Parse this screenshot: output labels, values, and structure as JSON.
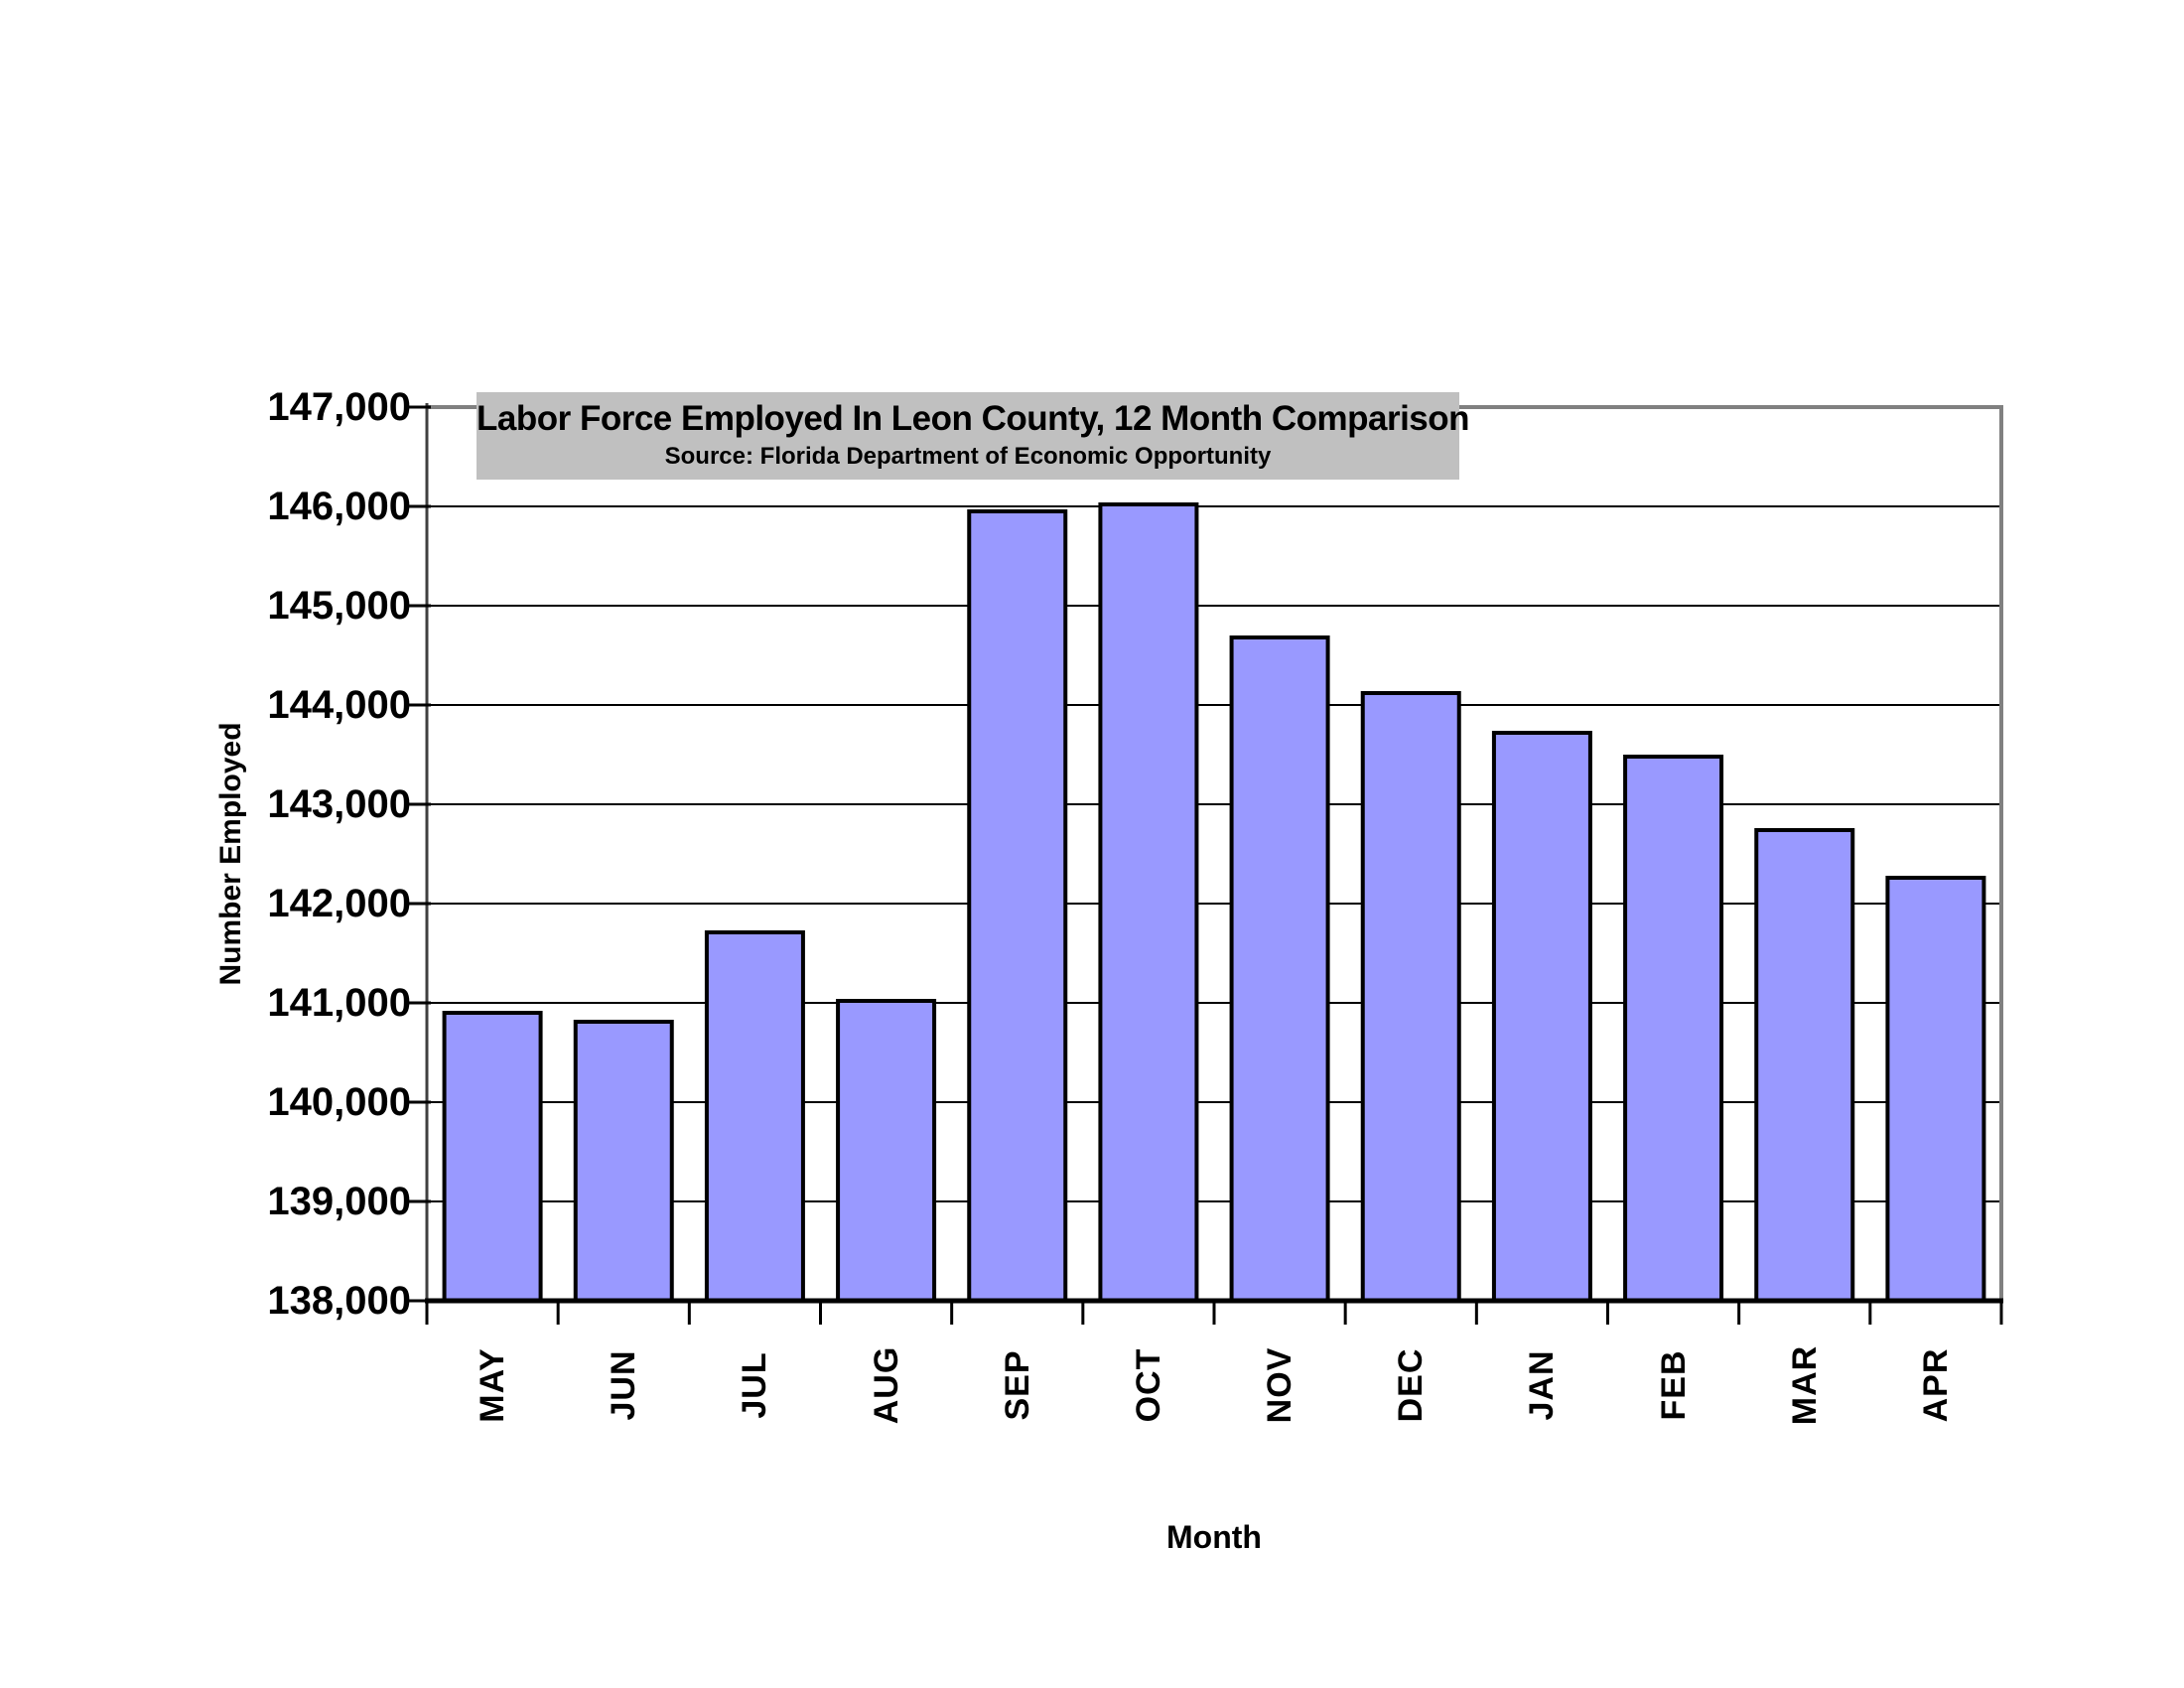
{
  "page": {
    "background": "#FFFFFF"
  },
  "chart": {
    "title": "Labor Force Employed In Leon County, 12 Month Comparison",
    "subtitle": "Source: Florida Department of Economic Opportunity",
    "xlabel": "Month",
    "ylabel": "Number Employed"
  },
  "chart_data": {
    "type": "bar",
    "title": "Labor Force Employed In Leon County, 12 Month Comparison",
    "subtitle": "Source: Florida Department of Economic Opportunity",
    "xlabel": "Month",
    "ylabel": "Number Employed",
    "categories": [
      "MAY",
      "JUN",
      "JUL",
      "AUG",
      "SEP",
      "OCT",
      "NOV",
      "DEC",
      "JAN",
      "FEB",
      "MAR",
      "APR"
    ],
    "values": [
      140900,
      140810,
      141710,
      141020,
      145950,
      146020,
      144680,
      144120,
      143720,
      143480,
      142740,
      142260
    ],
    "ylim": [
      138000,
      147000
    ],
    "ytick_interval": 1000,
    "ytick_labels": [
      "138,000",
      "139,000",
      "140,000",
      "141,000",
      "142,000",
      "143,000",
      "144,000",
      "145,000",
      "146,000",
      "147,000"
    ],
    "grid": true,
    "legend": false,
    "bar_fill": "#9999FF",
    "bar_border": "#000000",
    "gridline_color": "#000000",
    "frame_color": "#808080",
    "axis_color": "#000000",
    "left_axis_color": "#404040",
    "title_bg": "#C0C0C0"
  }
}
